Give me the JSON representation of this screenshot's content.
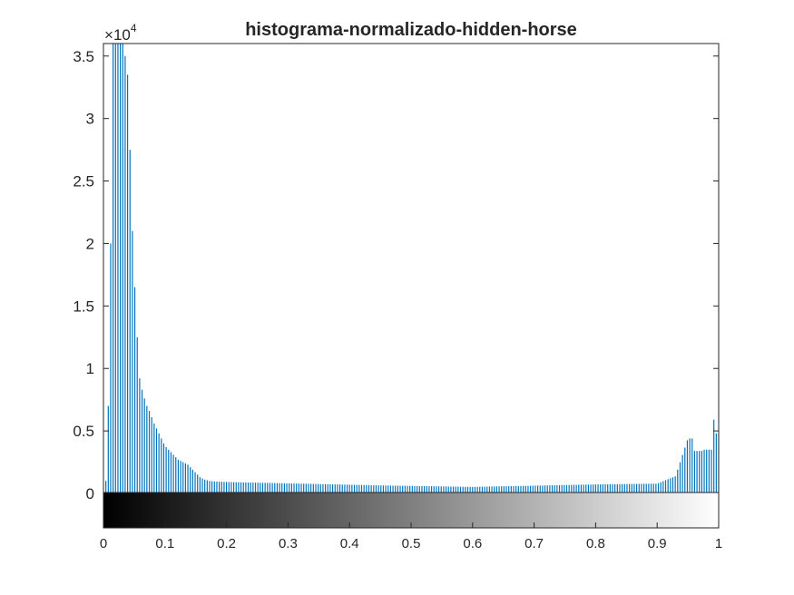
{
  "chart_data": {
    "type": "bar",
    "title": "histograma-normalizado-hidden-horse",
    "xlabel": "",
    "ylabel": "",
    "xlim": [
      0,
      1
    ],
    "ylim": [
      0,
      36000
    ],
    "y_multiplier_base": "10",
    "y_multiplier_exponent": "4",
    "y_multiplier_prefix": "×",
    "y_ticks": [
      0,
      0.5,
      1,
      1.5,
      2,
      2.5,
      3,
      3.5
    ],
    "y_tick_labels": [
      "0",
      "0.5",
      "1",
      "1.5",
      "2",
      "2.5",
      "3",
      "3.5"
    ],
    "x_ticks": [
      0,
      0.1,
      0.2,
      0.3,
      0.4,
      0.5,
      0.6,
      0.7,
      0.8,
      0.9,
      1
    ],
    "x_tick_labels": [
      "0",
      "0.1",
      "0.2",
      "0.3",
      "0.4",
      "0.5",
      "0.6",
      "0.7",
      "0.8",
      "0.9",
      "1"
    ],
    "grid": false,
    "colorbar": "grayscale 0 to 1, below plot",
    "bar_color": "#0072BD",
    "bins": 256,
    "x": [
      0.0039,
      0.0078,
      0.0118,
      0.0157,
      0.0196,
      0.0235,
      0.0275,
      0.0314,
      0.0353,
      0.0392,
      0.0431,
      0.0471,
      0.051,
      0.0549,
      0.0588,
      0.0627,
      0.0667,
      0.0706,
      0.0745,
      0.0784,
      0.0824,
      0.0863,
      0.0902,
      0.0941,
      0.098,
      0.102,
      0.1059,
      0.1098,
      0.1137,
      0.1176,
      0.1216,
      0.1255,
      0.1294,
      0.1333,
      0.1373,
      0.1412,
      0.1451,
      0.149,
      0.1529,
      0.1569,
      0.1608,
      0.1647,
      0.1686,
      0.1725,
      0.1765,
      0.1804,
      0.1843,
      0.1882,
      0.1922,
      0.1961
    ],
    "values": [
      1000,
      7000,
      20000,
      36000,
      36000,
      36000,
      36000,
      36000,
      35000,
      33500,
      27500,
      21000,
      16500,
      12500,
      9200,
      8300,
      7600,
      7000,
      6600,
      6100,
      5600,
      5200,
      4800,
      4400,
      4000,
      3700,
      3500,
      3300,
      3100,
      2900,
      2700,
      2600,
      2500,
      2400,
      2300,
      2100,
      1900,
      1700,
      1500,
      1300,
      1200,
      1100,
      1050,
      1000,
      980,
      960,
      950,
      940,
      930,
      920
    ]
  }
}
